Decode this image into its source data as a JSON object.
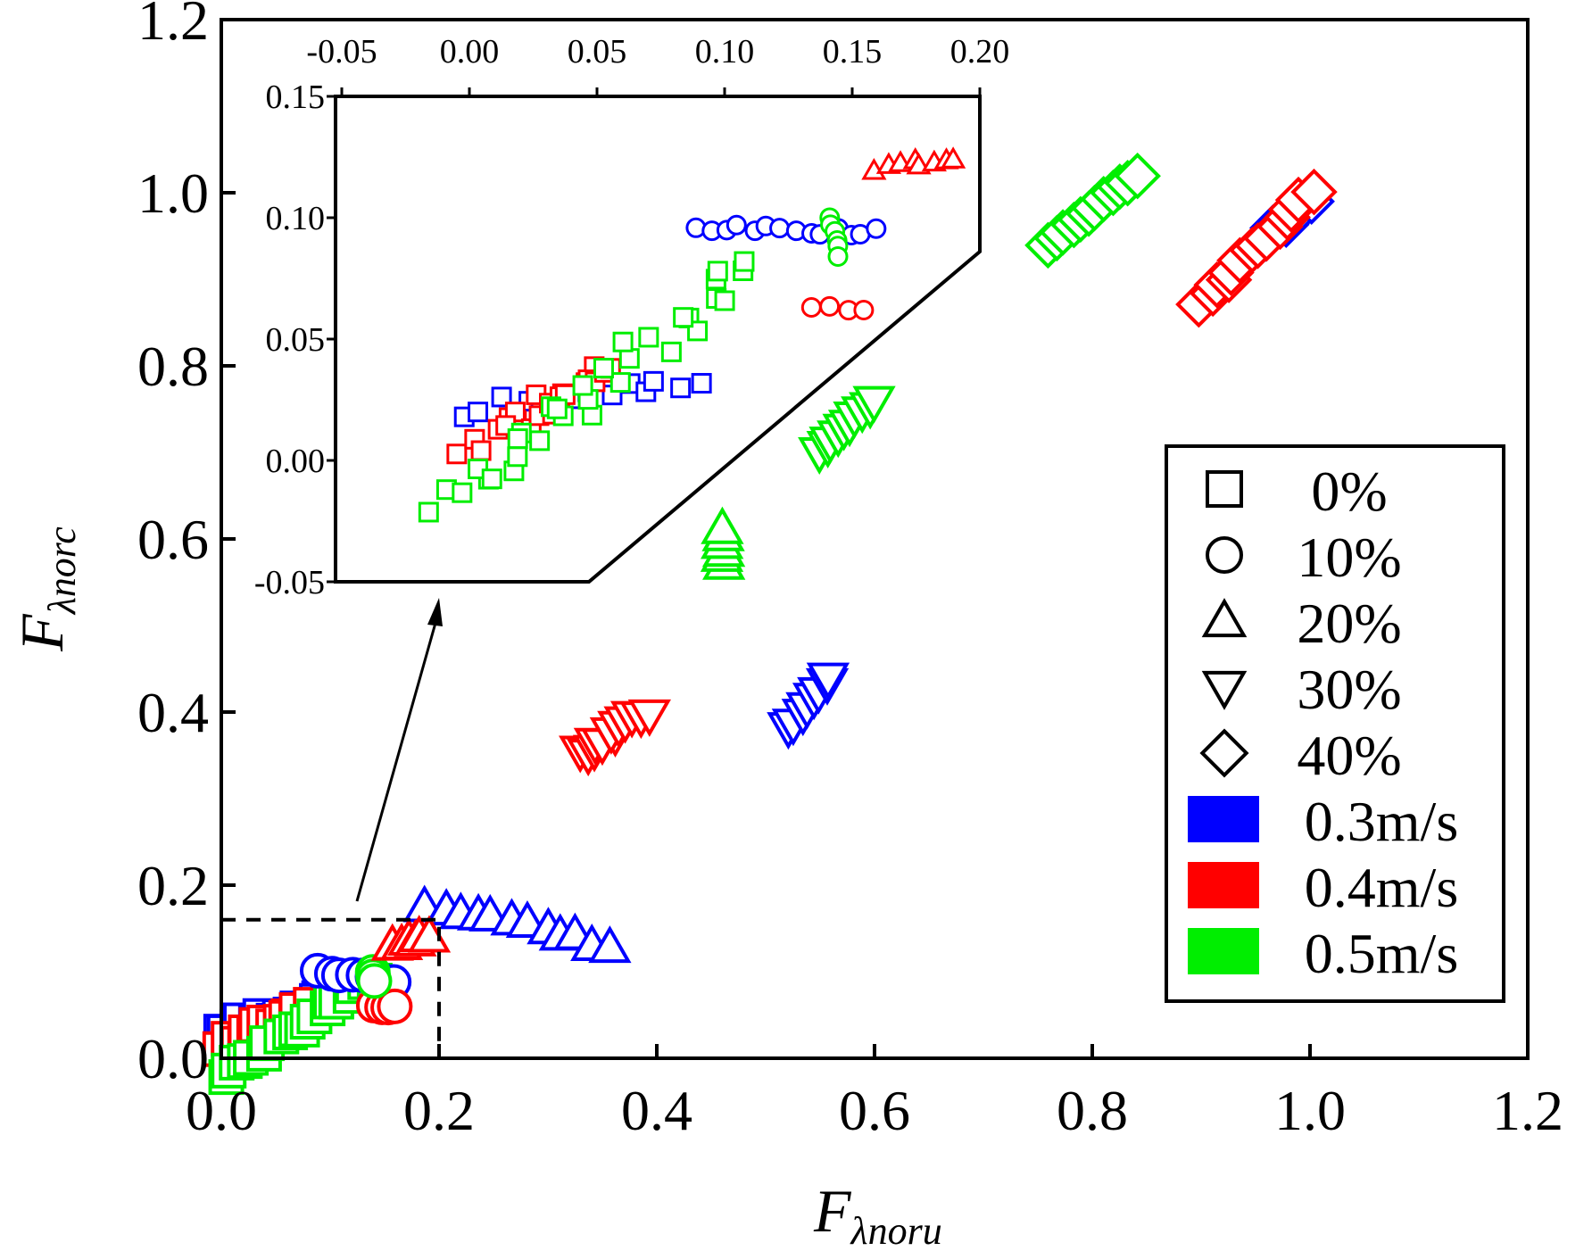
{
  "chart_data": {
    "type": "scatter",
    "xlabel": {
      "main": "F",
      "sub": "λnoru"
    },
    "ylabel": {
      "main": "F",
      "sub": "λnorc"
    },
    "xlim": [
      0.0,
      1.2
    ],
    "ylim": [
      0.0,
      1.2
    ],
    "xticks": [
      "0.0",
      "0.2",
      "0.4",
      "0.6",
      "0.8",
      "1.0",
      "1.2"
    ],
    "yticks": [
      "0.0",
      "0.2",
      "0.4",
      "0.6",
      "0.8",
      "1.0",
      "1.2"
    ],
    "colors": {
      "0.3m/s": "#0000ff",
      "0.4m/s": "#ff0000",
      "0.5m/s": "#00ee00"
    },
    "legend": {
      "position": "right",
      "markers": [
        {
          "symbol": "square",
          "label": "0%"
        },
        {
          "symbol": "circle",
          "label": "10%"
        },
        {
          "symbol": "triangle-up",
          "label": "20%"
        },
        {
          "symbol": "triangle-down",
          "label": "30%"
        },
        {
          "symbol": "diamond",
          "label": "40%"
        }
      ],
      "speeds": [
        {
          "color": "#0000ff",
          "label": "0.3m/s"
        },
        {
          "color": "#ff0000",
          "label": "0.4m/s"
        },
        {
          "color": "#00ee00",
          "label": "0.5m/s"
        }
      ]
    },
    "series": [
      {
        "name": "0% 0.3m/s",
        "marker": "square",
        "color": "#0000ff",
        "from": [
          0.0,
          0.03
        ],
        "to": [
          0.1,
          0.07
        ],
        "n": 14,
        "spread": 0.012
      },
      {
        "name": "0% 0.4m/s",
        "marker": "square",
        "color": "#ff0000",
        "from": [
          0.0,
          0.01
        ],
        "to": [
          0.08,
          0.06
        ],
        "n": 16,
        "spread": 0.012
      },
      {
        "name": "0% 0.5m/s",
        "marker": "square",
        "color": "#00ee00",
        "from": [
          0.0,
          -0.02
        ],
        "to": [
          0.14,
          0.09
        ],
        "n": 20,
        "spread": 0.01
      },
      {
        "name": "10% 0.3m/s",
        "marker": "circle",
        "color": "#0000ff",
        "from": [
          0.09,
          0.1
        ],
        "to": [
          0.16,
          0.09
        ],
        "n": 8,
        "spread": 0.004
      },
      {
        "name": "10% 0.4m/s",
        "marker": "circle",
        "color": "#ff0000",
        "from": [
          0.14,
          0.06
        ],
        "to": [
          0.16,
          0.06
        ],
        "n": 4,
        "spread": 0.003
      },
      {
        "name": "10% 0.5m/s",
        "marker": "circle",
        "color": "#00ee00",
        "from": [
          0.14,
          0.1
        ],
        "to": [
          0.14,
          0.09
        ],
        "n": 3,
        "spread": 0.002
      },
      {
        "name": "20% 0.3m/s",
        "marker": "triangle-up",
        "color": "#0000ff",
        "from": [
          0.19,
          0.18
        ],
        "to": [
          0.36,
          0.13
        ],
        "n": 12,
        "spread": 0.01
      },
      {
        "name": "20% 0.4m/s",
        "marker": "triangle-up",
        "color": "#ff0000",
        "from": [
          0.16,
          0.13
        ],
        "to": [
          0.19,
          0.14
        ],
        "n": 6,
        "spread": 0.006
      },
      {
        "name": "20% 0.5m/s",
        "marker": "triangle-up",
        "color": "#00ee00",
        "from": [
          0.46,
          0.57
        ],
        "to": [
          0.46,
          0.61
        ],
        "n": 6,
        "spread": 0.004
      },
      {
        "name": "30% 0.3m/s",
        "marker": "triangle-down",
        "color": "#0000ff",
        "from": [
          0.52,
          0.38
        ],
        "to": [
          0.56,
          0.44
        ],
        "n": 8,
        "spread": 0.006
      },
      {
        "name": "30% 0.4m/s",
        "marker": "triangle-down",
        "color": "#ff0000",
        "from": [
          0.33,
          0.35
        ],
        "to": [
          0.39,
          0.4
        ],
        "n": 12,
        "spread": 0.01
      },
      {
        "name": "30% 0.5m/s",
        "marker": "triangle-down",
        "color": "#00ee00",
        "from": [
          0.55,
          0.7
        ],
        "to": [
          0.6,
          0.76
        ],
        "n": 10,
        "spread": 0.004
      },
      {
        "name": "40% 0.3m/s",
        "marker": "diamond",
        "color": "#0000ff",
        "from": [
          0.96,
          0.95
        ],
        "to": [
          1.0,
          0.99
        ],
        "n": 6,
        "spread": 0.006
      },
      {
        "name": "40% 0.4m/s",
        "marker": "diamond",
        "color": "#ff0000",
        "from": [
          0.9,
          0.87
        ],
        "to": [
          1.0,
          1.0
        ],
        "n": 14,
        "spread": 0.008
      },
      {
        "name": "40% 0.5m/s",
        "marker": "diamond",
        "color": "#00ee00",
        "from": [
          0.76,
          0.94
        ],
        "to": [
          0.84,
          1.02
        ],
        "n": 12,
        "spread": 0.004
      }
    ],
    "zoom_box": {
      "xlim": [
        0.0,
        0.2
      ],
      "ylim": [
        0.0,
        0.16
      ]
    },
    "inset": {
      "xlim": [
        -0.05,
        0.2
      ],
      "ylim": [
        -0.05,
        0.15
      ],
      "xticks": [
        "-0.05",
        "0.00",
        "0.05",
        "0.10",
        "0.15",
        "0.20"
      ],
      "yticks": [
        "-0.05",
        "0.00",
        "0.05",
        "0.10",
        "0.15"
      ],
      "series": [
        {
          "name": "inset 0% 0.3m/s",
          "marker": "square",
          "color": "#0000ff",
          "from": [
            0.0,
            0.02
          ],
          "to": [
            0.09,
            0.035
          ],
          "n": 14,
          "spread": 0.008
        },
        {
          "name": "inset 0% 0.4m/s",
          "marker": "square",
          "color": "#ff0000",
          "from": [
            0.0,
            0.005
          ],
          "to": [
            0.06,
            0.04
          ],
          "n": 22,
          "spread": 0.012
        },
        {
          "name": "inset 0% 0.5m/s",
          "marker": "square",
          "color": "#00ee00",
          "from": [
            -0.01,
            -0.02
          ],
          "to": [
            0.11,
            0.08
          ],
          "n": 32,
          "spread": 0.015
        },
        {
          "name": "inset 10% 0.3m/s",
          "marker": "circle",
          "color": "#0000ff",
          "from": [
            0.09,
            0.096
          ],
          "to": [
            0.16,
            0.094
          ],
          "n": 14,
          "spread": 0.003
        },
        {
          "name": "inset 10% 0.4m/s",
          "marker": "circle",
          "color": "#ff0000",
          "from": [
            0.135,
            0.064
          ],
          "to": [
            0.155,
            0.062
          ],
          "n": 4,
          "spread": 0.002
        },
        {
          "name": "inset 10% 0.5m/s",
          "marker": "circle",
          "color": "#00ee00",
          "from": [
            0.142,
            0.1
          ],
          "to": [
            0.144,
            0.085
          ],
          "n": 6,
          "spread": 0.002
        },
        {
          "name": "inset 20% 0.4m/s",
          "marker": "triangle-up",
          "color": "#ff0000",
          "from": [
            0.16,
            0.12
          ],
          "to": [
            0.19,
            0.125
          ],
          "n": 8,
          "spread": 0.004
        }
      ]
    }
  }
}
